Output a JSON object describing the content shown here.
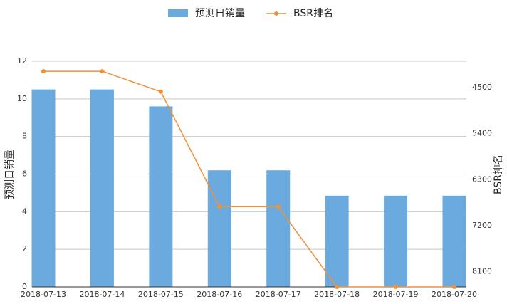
{
  "chart_data": {
    "type": "bar-line",
    "categories": [
      "2018-07-13",
      "2018-07-14",
      "2018-07-15",
      "2018-07-16",
      "2018-07-17",
      "2018-07-18",
      "2018-07-19",
      "2018-07-20"
    ],
    "series": [
      {
        "name": "预测日销量",
        "type": "bar",
        "color": "#6aaade",
        "values": [
          10.5,
          10.5,
          9.6,
          6.2,
          6.2,
          4.85,
          4.85,
          4.85
        ]
      },
      {
        "name": "BSR排名",
        "type": "line",
        "axis": "y2",
        "color": "#f0913a",
        "values": [
          4180,
          4180,
          4580,
          6830,
          6830,
          8400,
          8400,
          8400
        ]
      }
    ],
    "ylabel": "预测日销量",
    "y2label": "BSR排名",
    "ylim": [
      0,
      12
    ],
    "yticks": [
      0,
      2,
      4,
      6,
      8,
      10,
      12
    ],
    "y2lim": [
      8400,
      3984
    ],
    "y2ticks": [
      4500,
      5400,
      6300,
      7200,
      8100
    ],
    "grid": true,
    "legend": "top"
  }
}
